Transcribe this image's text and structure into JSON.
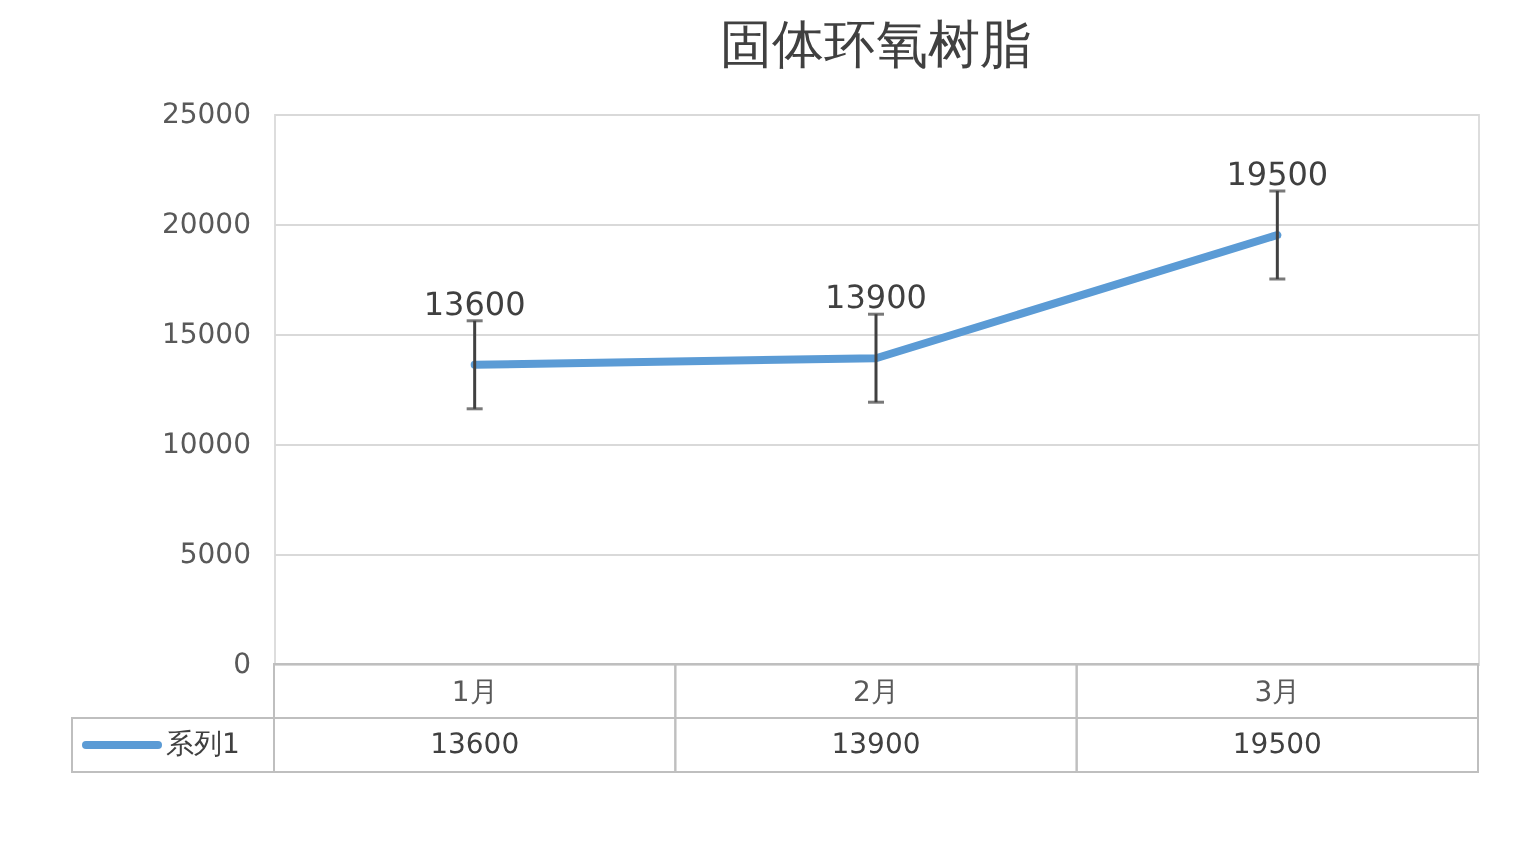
{
  "chart_data": {
    "type": "line",
    "title": "固体环氧树脂",
    "categories": [
      "1月",
      "2月",
      "3月"
    ],
    "series": [
      {
        "name": "系列1",
        "color": "#5b9bd5",
        "values": [
          13600,
          13900,
          19500
        ],
        "errors": [
          2000,
          2000,
          2000
        ],
        "value_labels": [
          "13600",
          "13900",
          "19500"
        ]
      }
    ],
    "annotations": [
      "13600",
      "13900",
      "19500"
    ],
    "ylim": [
      0,
      25000
    ],
    "yticks": [
      0,
      5000,
      10000,
      15000,
      20000,
      25000
    ],
    "grid": "y",
    "data_labels": true,
    "legend": "bottom left"
  }
}
